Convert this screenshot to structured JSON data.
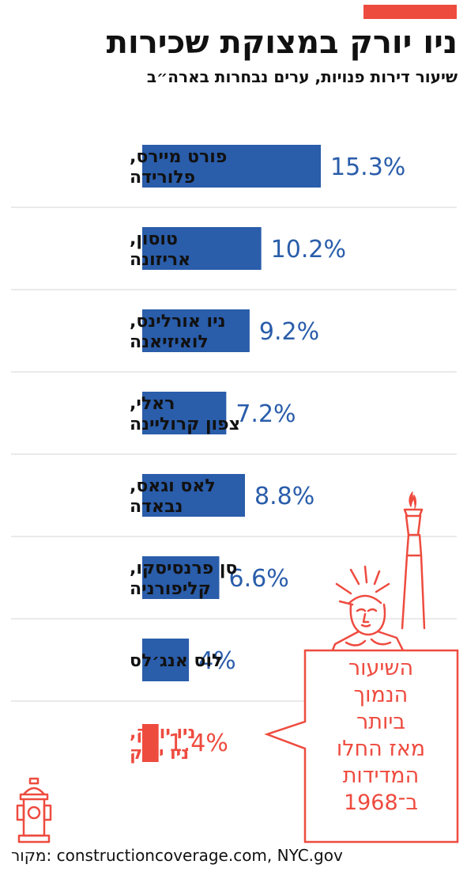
{
  "title": "ניו יורק במצוקת שכירות",
  "subtitle": "שיעור דירות פנויות, ערים נבחרות בארה״ב",
  "chart_data": {
    "type": "bar",
    "orientation": "horizontal",
    "categories": [
      [
        "פורט מיירס,",
        "פלורידה"
      ],
      [
        "טוסון,",
        "אריזונה"
      ],
      [
        "ניו אורלינס,",
        "לואיזיאנה"
      ],
      [
        "ראלי,",
        "צפון קרוליינה"
      ],
      [
        "לאס וגאס,",
        "נבאדה"
      ],
      [
        "סן פרנסיסקו,",
        "קליפורניה"
      ],
      [
        "לוס אנג׳לס"
      ],
      [
        "ניו יורק,",
        "ניו יורק"
      ]
    ],
    "values": [
      15.3,
      10.2,
      9.2,
      7.2,
      8.8,
      6.6,
      4,
      1.4
    ],
    "value_labels": [
      "15.3%",
      "10.2%",
      "9.2%",
      "7.2%",
      "8.8%",
      "6.6%",
      "4%",
      "1.4%"
    ],
    "highlight_index": 7,
    "unit": "%"
  },
  "callout": {
    "lines": [
      "השיעור",
      "הנמוך",
      "ביותר",
      "מאז החלו",
      "המדידות",
      "ב־1968"
    ]
  },
  "source": "מקור: construction­coverage.com, NYC.gov",
  "colors": {
    "bar": "#2a5daa",
    "highlight": "#ee4b3f",
    "accent": "#ee4b3f",
    "text": "#111111"
  },
  "icons": [
    "statue-of-liberty-icon",
    "fire-hydrant-icon"
  ]
}
